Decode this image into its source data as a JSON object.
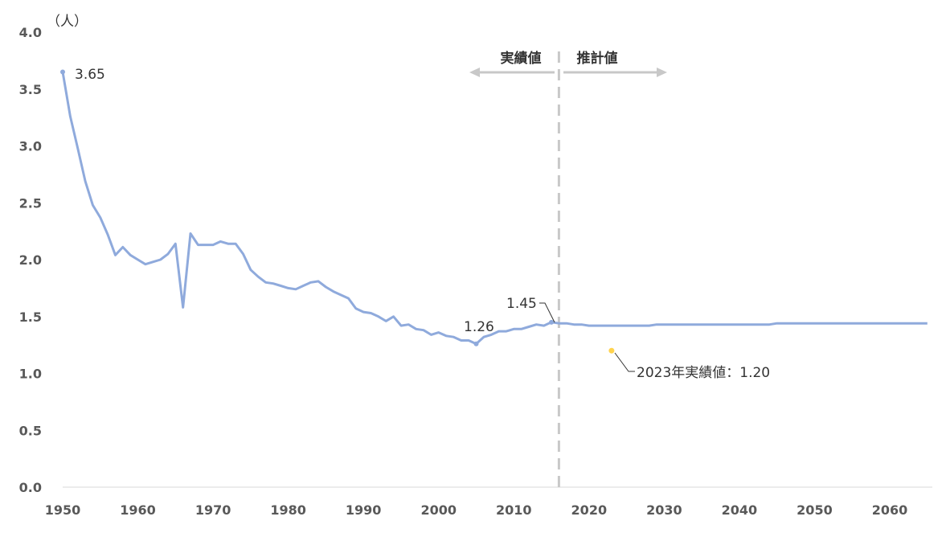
{
  "chart_data": {
    "type": "line",
    "unit_label": "（人）",
    "xlim": [
      1950,
      2065
    ],
    "ylim": [
      0,
      4.0
    ],
    "x_ticks": [
      "1950",
      "1960",
      "1970",
      "1980",
      "1990",
      "2000",
      "2010",
      "2020",
      "2030",
      "2040",
      "2050",
      "2060"
    ],
    "y_ticks": [
      "0.0",
      "0.5",
      "1.0",
      "1.5",
      "2.0",
      "2.5",
      "3.0",
      "3.5",
      "4.0"
    ],
    "grid": false,
    "line_color": "#8faadc",
    "highlight_color": "#ffd34d",
    "divider_color": "#c8c8c8",
    "divider_year": 2016,
    "actual_label": "実績値",
    "projected_label": "推計値",
    "series": [
      {
        "x": [
          1950,
          1951,
          1952,
          1953,
          1954,
          1955,
          1956,
          1957,
          1958,
          1959,
          1960,
          1961,
          1962,
          1963,
          1964,
          1965,
          1966,
          1967,
          1968,
          1969,
          1970,
          1971,
          1972,
          1973,
          1974,
          1975,
          1976,
          1977,
          1978,
          1979,
          1980,
          1981,
          1982,
          1983,
          1984,
          1985,
          1986,
          1987,
          1988,
          1989,
          1990,
          1991,
          1992,
          1993,
          1994,
          1995,
          1996,
          1997,
          1998,
          1999,
          2000,
          2001,
          2002,
          2003,
          2004,
          2005,
          2006,
          2007,
          2008,
          2009,
          2010,
          2011,
          2012,
          2013,
          2014,
          2015,
          2016,
          2017,
          2018,
          2019,
          2020,
          2021,
          2022,
          2023,
          2024,
          2025,
          2026,
          2027,
          2028,
          2029,
          2030,
          2031,
          2032,
          2033,
          2034,
          2035,
          2036,
          2037,
          2038,
          2039,
          2040,
          2041,
          2042,
          2043,
          2044,
          2045,
          2046,
          2047,
          2048,
          2049,
          2050,
          2051,
          2052,
          2053,
          2054,
          2055,
          2056,
          2057,
          2058,
          2059,
          2060,
          2061,
          2062,
          2063,
          2064,
          2065
        ],
        "values": [
          3.65,
          3.26,
          2.98,
          2.69,
          2.48,
          2.37,
          2.22,
          2.04,
          2.11,
          2.04,
          2.0,
          1.96,
          1.98,
          2.0,
          2.05,
          2.14,
          1.58,
          2.23,
          2.13,
          2.13,
          2.13,
          2.16,
          2.14,
          2.14,
          2.05,
          1.91,
          1.85,
          1.8,
          1.79,
          1.77,
          1.75,
          1.74,
          1.77,
          1.8,
          1.81,
          1.76,
          1.72,
          1.69,
          1.66,
          1.57,
          1.54,
          1.53,
          1.5,
          1.46,
          1.5,
          1.42,
          1.43,
          1.39,
          1.38,
          1.34,
          1.36,
          1.33,
          1.32,
          1.29,
          1.29,
          1.26,
          1.32,
          1.34,
          1.37,
          1.37,
          1.39,
          1.39,
          1.41,
          1.43,
          1.42,
          1.45,
          1.44,
          1.44,
          1.43,
          1.43,
          1.42,
          1.42,
          1.42,
          1.42,
          1.42,
          1.42,
          1.42,
          1.42,
          1.42,
          1.43,
          1.43,
          1.43,
          1.43,
          1.43,
          1.43,
          1.43,
          1.43,
          1.43,
          1.43,
          1.43,
          1.43,
          1.43,
          1.43,
          1.43,
          1.43,
          1.44,
          1.44,
          1.44,
          1.44,
          1.44,
          1.44,
          1.44,
          1.44,
          1.44,
          1.44,
          1.44,
          1.44,
          1.44,
          1.44,
          1.44,
          1.44,
          1.44,
          1.44,
          1.44,
          1.44,
          1.44
        ]
      }
    ],
    "annotations": [
      {
        "year": 1950,
        "value": 3.65,
        "text": "3.65"
      },
      {
        "year": 2005,
        "value": 1.26,
        "text": "1.26"
      },
      {
        "year": 2015,
        "value": 1.45,
        "text": "1.45"
      },
      {
        "year": 2023,
        "value": 1.2,
        "text": "2023年実績値：1.20"
      }
    ]
  }
}
